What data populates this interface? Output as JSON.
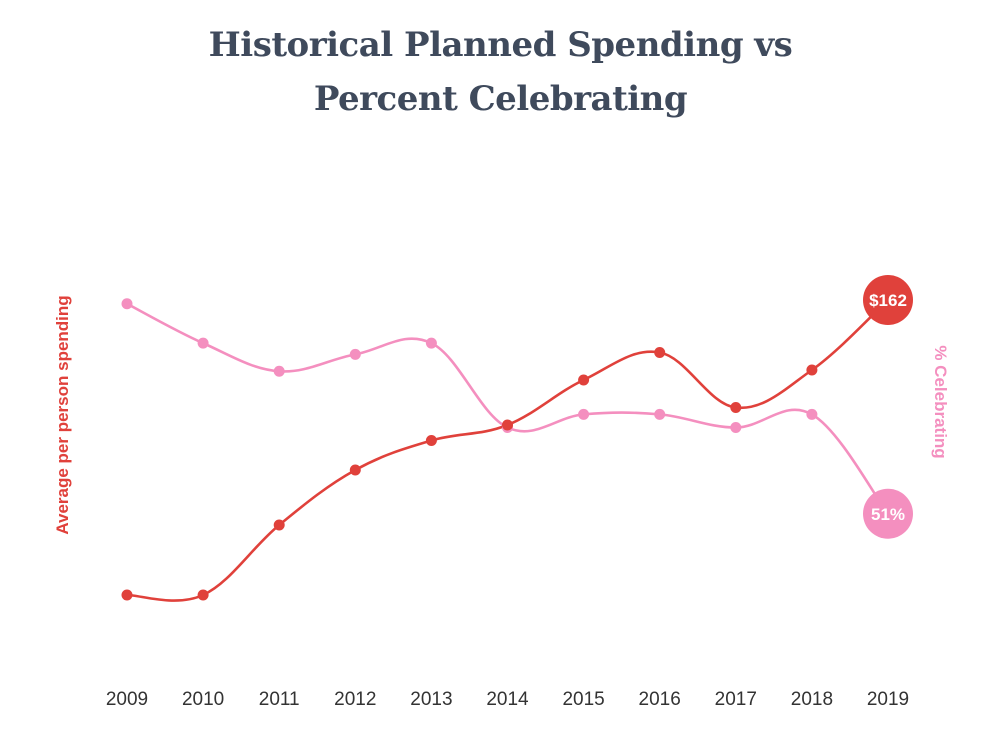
{
  "title_lines": [
    "Historical Planned Spending vs",
    "Percent Celebrating"
  ],
  "chart_data": {
    "type": "line",
    "title": "Historical Planned Spending vs Percent Celebrating",
    "x": [
      "2009",
      "2010",
      "2011",
      "2012",
      "2013",
      "2014",
      "2015",
      "2016",
      "2017",
      "2018",
      "2019"
    ],
    "series": [
      {
        "name": "Average per person spending",
        "axis": "left",
        "color": "#e0413b",
        "values": [
          103,
          103,
          117,
          128,
          133.9,
          137,
          146,
          151.5,
          140.5,
          148,
          162
        ],
        "end_label": "$162"
      },
      {
        "name": "% Celebrating",
        "axis": "right",
        "color": "#f48fbf",
        "values": [
          62.2,
          60.1,
          58.6,
          59.5,
          60.1,
          55.6,
          56.3,
          56.3,
          55.6,
          56.3,
          51
        ],
        "end_label": "51%"
      }
    ],
    "ylabel_left": "Average per person spending",
    "ylabel_right": "% Celebrating",
    "ylim_left": [
      78,
      198
    ],
    "ylim_right": [
      40,
      72
    ],
    "grid": false,
    "legend": "none"
  }
}
